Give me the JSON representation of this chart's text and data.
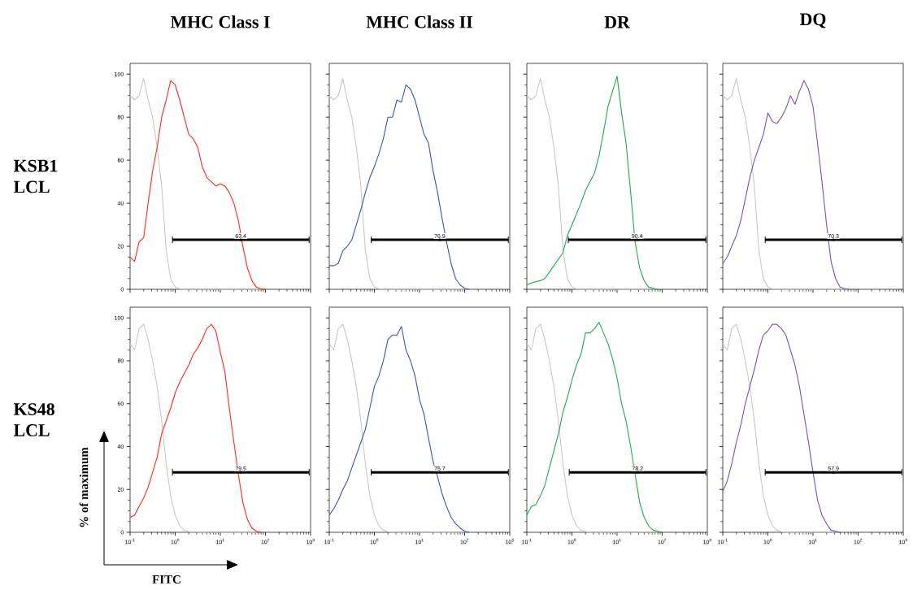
{
  "chart_data": [
    {
      "type": "line",
      "title": "MHC Class I",
      "annotations": [
        "KSB1 LCL",
        {
          "text": "63.4",
          "x": 28.4,
          "y": 23
        }
      ],
      "tick_labels": "y",
      "log": "x",
      "xlim": [
        0.1,
        1000
      ],
      "ylim": [
        0,
        105
      ],
      "xticks": [
        {
          "value": 0.1,
          "label": null
        },
        {
          "value": 1,
          "label": null
        },
        {
          "value": 10,
          "label": null
        },
        {
          "value": 100,
          "label": null
        },
        {
          "value": 1000,
          "label": null
        }
      ],
      "yticks": [
        0,
        20,
        40,
        60,
        80,
        100
      ],
      "x": [
        0.1,
        0.126,
        0.158,
        0.2,
        0.251,
        0.316,
        0.398,
        0.501,
        0.631,
        0.794,
        1,
        1.26,
        1.58,
        2,
        2.51,
        3.16,
        3.98,
        5.01,
        6.31,
        7.94,
        10,
        12.6,
        15.8,
        20,
        25.1,
        31.6,
        39.8,
        50.1,
        63.1,
        79.4,
        100
      ],
      "series": [
        {
          "color": "#c8c8c8",
          "values": [
            90,
            88,
            90,
            98,
            88,
            80,
            66,
            48,
            18,
            5,
            1,
            0.3,
            0,
            0,
            0,
            0,
            0,
            0,
            0,
            0,
            0,
            0,
            0,
            0,
            0,
            0,
            0,
            0,
            0,
            0,
            null
          ]
        },
        {
          "color": "#ff2a1a",
          "values": [
            15,
            13,
            22,
            24,
            40,
            55,
            66,
            80,
            88,
            97,
            95,
            88,
            80,
            72,
            70,
            66,
            57,
            52,
            50,
            48,
            49,
            48,
            45,
            40,
            32,
            20,
            10,
            4,
            1,
            0.3,
            0
          ]
        },
        {
          "type": "scatter",
          "color": "#000000",
          "marker": "circle",
          "x": [
            28.4
          ],
          "values": [
            23
          ],
          "xerrors": [
            [
              0.87,
              930
            ]
          ]
        }
      ]
    },
    {
      "type": "line",
      "title": "MHC Class II",
      "annotations": [
        {
          "text": "76.9",
          "x": 28.1,
          "y": 23
        }
      ],
      "tick_labels": false,
      "log": "x",
      "xlim": [
        0.1,
        1000
      ],
      "ylim": [
        0,
        105
      ],
      "xticks": [
        {
          "value": 0.1,
          "label": null
        },
        {
          "value": 1,
          "label": null
        },
        {
          "value": 10,
          "label": null
        },
        {
          "value": 100,
          "label": null
        },
        {
          "value": 1000,
          "label": null
        }
      ],
      "yticks": [
        0,
        20,
        40,
        60,
        80,
        100
      ],
      "x": [
        0.1,
        0.126,
        0.158,
        0.2,
        0.251,
        0.316,
        0.398,
        0.501,
        0.631,
        0.794,
        1,
        1.26,
        1.58,
        2,
        2.51,
        3.16,
        3.98,
        5.01,
        6.31,
        7.94,
        10,
        12.6,
        15.8,
        20,
        25.1,
        31.6,
        39.8,
        50.1,
        63.1,
        79.4,
        100,
        126
      ],
      "series": [
        {
          "color": "#c8c8c8",
          "values": [
            90,
            88,
            90,
            98,
            88,
            80,
            66,
            48,
            18,
            5,
            1,
            0.3,
            0,
            0,
            0,
            0,
            0,
            0,
            0,
            0,
            0,
            0,
            0,
            0,
            0,
            0,
            0,
            0,
            0,
            0,
            0,
            null
          ]
        },
        {
          "color": "#3d55a8",
          "values": [
            11,
            11,
            12,
            18,
            20,
            23,
            30,
            37,
            45,
            52,
            57,
            63,
            70,
            80,
            80,
            88,
            87,
            95,
            93,
            88,
            80,
            72,
            68,
            55,
            45,
            33,
            22,
            12,
            5,
            2,
            0.5,
            0
          ]
        },
        {
          "type": "scatter",
          "color": "#000000",
          "marker": "circle",
          "x": [
            28.1
          ],
          "values": [
            23
          ],
          "xerrors": [
            [
              0.85,
              930
            ]
          ]
        }
      ]
    },
    {
      "type": "line",
      "title": "DR",
      "annotations": [
        {
          "text": "90.4",
          "x": 27.8,
          "y": 23
        }
      ],
      "tick_labels": false,
      "log": "x",
      "xlim": [
        0.1,
        1000
      ],
      "ylim": [
        0,
        105
      ],
      "xticks": [
        {
          "value": 0.1,
          "label": null
        },
        {
          "value": 1,
          "label": null
        },
        {
          "value": 10,
          "label": null
        },
        {
          "value": 100,
          "label": null
        },
        {
          "value": 1000,
          "label": null
        }
      ],
      "yticks": [
        0,
        20,
        40,
        60,
        80,
        100
      ],
      "x": [
        0.1,
        0.126,
        0.158,
        0.2,
        0.251,
        0.316,
        0.398,
        0.501,
        0.631,
        0.794,
        1,
        1.26,
        1.58,
        2,
        2.51,
        3.16,
        3.98,
        5.01,
        6.31,
        7.94,
        10,
        12.6,
        15.8,
        20,
        25.1,
        31.6,
        39.8,
        50.1,
        63.1,
        79.4
      ],
      "series": [
        {
          "color": "#c8c8c8",
          "values": [
            90,
            88,
            90,
            98,
            88,
            80,
            66,
            48,
            18,
            5,
            1,
            0.3,
            0,
            0,
            0,
            0,
            0,
            0,
            0,
            0,
            0,
            0,
            0,
            0,
            0,
            0,
            0,
            0,
            0,
            null
          ]
        },
        {
          "color": "#22aa4a",
          "values": [
            2,
            3,
            3.5,
            4,
            5,
            8,
            11,
            14,
            17,
            25,
            30,
            35,
            40,
            46,
            50,
            54,
            62,
            73,
            85,
            92,
            99,
            82,
            68,
            45,
            22,
            10,
            4,
            1,
            0.5,
            0
          ]
        },
        {
          "type": "scatter",
          "color": "#000000",
          "marker": "circle",
          "x": [
            27.8
          ],
          "values": [
            23
          ],
          "xerrors": [
            [
              0.83,
              930
            ]
          ]
        }
      ]
    },
    {
      "type": "line",
      "title": "DQ",
      "annotations": [
        {
          "text": "70.3",
          "x": 28.4,
          "y": 23
        }
      ],
      "tick_labels": false,
      "log": "x",
      "xlim": [
        0.1,
        1000
      ],
      "ylim": [
        0,
        105
      ],
      "xticks": [
        {
          "value": 0.1,
          "label": null
        },
        {
          "value": 1,
          "label": null
        },
        {
          "value": 10,
          "label": null
        },
        {
          "value": 100,
          "label": null
        },
        {
          "value": 1000,
          "label": null
        }
      ],
      "yticks": [
        0,
        20,
        40,
        60,
        80,
        100
      ],
      "x": [
        0.1,
        0.126,
        0.158,
        0.2,
        0.251,
        0.316,
        0.398,
        0.501,
        0.631,
        0.794,
        1,
        1.26,
        1.58,
        2,
        2.51,
        3.16,
        3.98,
        5.01,
        6.31,
        7.94,
        10,
        12.6,
        15.8,
        20,
        25.1,
        31.6,
        39.8,
        50.1,
        63.1
      ],
      "series": [
        {
          "color": "#c8c8c8",
          "values": [
            90,
            88,
            90,
            98,
            88,
            80,
            66,
            48,
            18,
            5,
            1,
            0.3,
            0,
            0,
            0,
            0,
            0,
            0,
            0,
            0,
            0,
            0,
            0,
            0,
            0,
            0,
            0,
            0,
            null
          ]
        },
        {
          "color": "#7b52b2",
          "values": [
            12,
            15,
            20,
            25,
            32,
            42,
            52,
            60,
            66,
            72,
            82,
            78,
            77,
            80,
            84,
            90,
            86,
            92,
            97,
            93,
            85,
            68,
            50,
            30,
            13,
            5,
            1,
            0.3,
            0
          ]
        },
        {
          "type": "scatter",
          "color": "#000000",
          "marker": "circle",
          "x": [
            28.4
          ],
          "values": [
            23
          ],
          "xerrors": [
            [
              0.87,
              930
            ]
          ]
        }
      ]
    },
    {
      "type": "line",
      "xlabel": "FITC",
      "ylabel": "% of maximum",
      "annotations": [
        "KS48 LCL",
        {
          "text": "79.5",
          "x": 28.4,
          "y": 28
        }
      ],
      "log": "x",
      "xlim": [
        0.1,
        1000
      ],
      "ylim": [
        0,
        105
      ],
      "xticks": [
        {
          "value": 0.1,
          "label": "10$^{-1}$"
        },
        {
          "value": 1,
          "label": "10$^{0}$"
        },
        {
          "value": 10,
          "label": "10$^{1}$"
        },
        {
          "value": 100,
          "label": "10$^{2}$"
        },
        {
          "value": 1000,
          "label": "10$^{3}$"
        }
      ],
      "yticks": [
        0,
        20,
        40,
        60,
        80,
        100
      ],
      "x": [
        0.1,
        0.126,
        0.158,
        0.2,
        0.251,
        0.316,
        0.398,
        0.501,
        0.631,
        0.794,
        1,
        1.26,
        1.58,
        2,
        2.51,
        3.16,
        3.98,
        5.01,
        6.31,
        7.94,
        10,
        12.6,
        15.8,
        20,
        25.1,
        31.6,
        39.8,
        50.1,
        63.1,
        79.4
      ],
      "series": [
        {
          "color": "#c8c8c8",
          "values": [
            88,
            85,
            95,
            97,
            90,
            80,
            68,
            52,
            32,
            17,
            8,
            3,
            1,
            0.3,
            0,
            0,
            0,
            0,
            0,
            0,
            0,
            0,
            0,
            0,
            0,
            0,
            0,
            0,
            0,
            null
          ]
        },
        {
          "color": "#ff2a1a",
          "values": [
            7,
            8,
            12,
            16,
            21,
            28,
            35,
            46,
            52,
            58,
            65,
            70,
            74,
            78,
            83,
            86,
            90,
            95,
            97,
            94,
            84,
            75,
            58,
            42,
            27,
            14,
            6,
            2,
            0.5,
            0
          ]
        },
        {
          "type": "scatter",
          "color": "#000000",
          "marker": "circle",
          "x": [
            28.4
          ],
          "values": [
            28
          ],
          "xerrors": [
            [
              0.87,
              930
            ]
          ]
        }
      ]
    },
    {
      "type": "line",
      "annotations": [
        {
          "text": "75.7",
          "x": 28.1,
          "y": 28
        }
      ],
      "tick_labels": "x",
      "log": "x",
      "xlim": [
        0.1,
        1000
      ],
      "ylim": [
        0,
        105
      ],
      "xticks": [
        {
          "value": 0.1,
          "label": "10$^{-1}$"
        },
        {
          "value": 1,
          "label": "10$^{0}$"
        },
        {
          "value": 10,
          "label": "10$^{1}$"
        },
        {
          "value": 100,
          "label": "10$^{2}$"
        },
        {
          "value": 1000,
          "label": "10$^{3}$"
        }
      ],
      "yticks": [
        0,
        20,
        40,
        60,
        80,
        100
      ],
      "x": [
        0.1,
        0.126,
        0.158,
        0.2,
        0.251,
        0.316,
        0.398,
        0.501,
        0.631,
        0.794,
        1,
        1.26,
        1.58,
        2,
        2.51,
        3.16,
        3.98,
        5.01,
        6.31,
        7.94,
        10,
        12.6,
        15.8,
        20,
        25.1,
        31.6,
        39.8,
        50.1,
        63.1,
        79.4,
        100,
        126
      ],
      "series": [
        {
          "color": "#c8c8c8",
          "values": [
            88,
            85,
            95,
            97,
            90,
            80,
            68,
            52,
            32,
            17,
            8,
            3,
            1,
            0.3,
            0,
            0,
            0,
            0,
            0,
            0,
            0,
            0,
            0,
            0,
            0,
            0,
            0,
            0,
            0,
            0,
            0,
            null
          ]
        },
        {
          "color": "#3d55a8",
          "values": [
            8,
            11,
            15,
            20,
            24,
            30,
            36,
            42,
            48,
            58,
            68,
            73,
            80,
            90,
            92,
            92,
            96,
            85,
            80,
            73,
            62,
            55,
            44,
            33,
            26,
            18,
            12,
            7,
            4,
            2,
            0.5,
            0
          ]
        },
        {
          "type": "scatter",
          "color": "#000000",
          "marker": "circle",
          "x": [
            28.1
          ],
          "values": [
            28
          ],
          "xerrors": [
            [
              0.85,
              930
            ]
          ]
        }
      ]
    },
    {
      "type": "line",
      "annotations": [
        {
          "text": "78.2",
          "x": 28.4,
          "y": 28
        }
      ],
      "tick_labels": "x",
      "log": "x",
      "xlim": [
        0.1,
        1000
      ],
      "ylim": [
        0,
        105
      ],
      "xticks": [
        {
          "value": 0.1,
          "label": "10$^{-1}$"
        },
        {
          "value": 1,
          "label": "10$^{0}$"
        },
        {
          "value": 10,
          "label": "10$^{1}$"
        },
        {
          "value": 100,
          "label": "10$^{2}$"
        },
        {
          "value": 1000,
          "label": "10$^{3}$"
        }
      ],
      "yticks": [
        0,
        20,
        40,
        60,
        80,
        100
      ],
      "x": [
        0.1,
        0.126,
        0.158,
        0.2,
        0.251,
        0.316,
        0.398,
        0.501,
        0.631,
        0.794,
        1,
        1.26,
        1.58,
        2,
        2.51,
        3.16,
        3.98,
        5.01,
        6.31,
        7.94,
        10,
        12.6,
        15.8,
        20,
        25.1,
        31.6,
        39.8,
        50.1,
        63.1,
        79.4,
        100
      ],
      "series": [
        {
          "color": "#c8c8c8",
          "values": [
            88,
            85,
            95,
            97,
            90,
            80,
            68,
            52,
            32,
            17,
            8,
            3,
            1,
            0.3,
            0,
            0,
            0,
            0,
            0,
            0,
            0,
            0,
            0,
            0,
            0,
            0,
            0,
            0,
            0,
            0,
            null
          ]
        },
        {
          "color": "#22aa4a",
          "values": [
            8,
            12,
            13,
            17,
            22,
            30,
            38,
            46,
            56,
            63,
            71,
            78,
            83,
            93,
            93,
            95,
            98,
            93,
            88,
            81,
            72,
            60,
            52,
            40,
            27,
            14,
            7,
            3,
            1,
            0.5,
            0
          ]
        },
        {
          "type": "scatter",
          "color": "#000000",
          "marker": "circle",
          "x": [
            28.4
          ],
          "values": [
            28
          ],
          "xerrors": [
            [
              0.87,
              930
            ]
          ]
        }
      ]
    },
    {
      "type": "line",
      "annotations": [
        {
          "text": "57.9",
          "x": 28.4,
          "y": 28
        }
      ],
      "tick_labels": "x",
      "log": "x",
      "xlim": [
        0.1,
        1000
      ],
      "ylim": [
        0,
        105
      ],
      "xticks": [
        {
          "value": 0.1,
          "label": "10$^{-1}$"
        },
        {
          "value": 1,
          "label": "10$^{0}$"
        },
        {
          "value": 10,
          "label": "10$^{1}$"
        },
        {
          "value": 100,
          "label": "10$^{2}$"
        },
        {
          "value": 1000,
          "label": "10$^{3}$"
        }
      ],
      "yticks": [
        0,
        20,
        40,
        60,
        80,
        100
      ],
      "x": [
        0.1,
        0.126,
        0.158,
        0.2,
        0.251,
        0.316,
        0.398,
        0.501,
        0.631,
        0.794,
        1,
        1.26,
        1.58,
        2,
        2.51,
        3.16,
        3.98,
        5.01,
        6.31,
        7.94,
        10,
        12.6,
        15.8,
        20,
        25.1,
        31.6,
        39.8
      ],
      "series": [
        {
          "color": "#c8c8c8",
          "values": [
            88,
            85,
            95,
            97,
            90,
            80,
            68,
            52,
            32,
            17,
            8,
            3,
            1,
            0.3,
            0,
            0,
            0,
            0,
            0,
            0,
            0,
            0,
            0,
            0,
            0,
            0,
            null
          ]
        },
        {
          "color": "#7b52b2",
          "values": [
            19,
            24,
            32,
            42,
            50,
            60,
            68,
            76,
            85,
            92,
            94,
            97,
            97,
            95,
            92,
            85,
            78,
            68,
            55,
            42,
            28,
            15,
            8,
            4,
            1,
            0.5,
            0
          ]
        },
        {
          "type": "scatter",
          "color": "#000000",
          "marker": "circle",
          "x": [
            28.4
          ],
          "values": [
            28
          ],
          "xerrors": [
            [
              0.87,
              930
            ]
          ]
        }
      ]
    }
  ]
}
